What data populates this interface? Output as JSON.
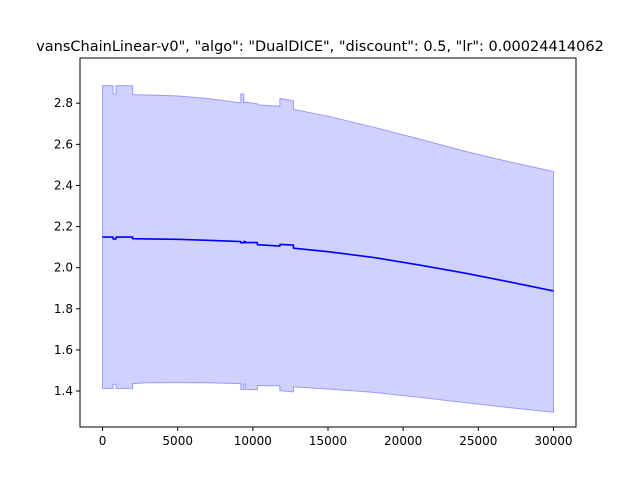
{
  "chart_data": {
    "type": "line",
    "title": "vansChainLinear-v0\", \"algo\": \"DualDICE\", \"discount\": 0.5, \"lr\": 0.00024414062",
    "xlabel": "",
    "ylabel": "",
    "xlim": [
      -1500,
      31500
    ],
    "ylim": [
      1.225,
      3.02
    ],
    "x_ticks": [
      0,
      5000,
      10000,
      15000,
      20000,
      25000,
      30000
    ],
    "x_tick_labels": [
      "0",
      "5000",
      "10000",
      "15000",
      "20000",
      "25000",
      "30000"
    ],
    "y_ticks": [
      1.4,
      1.6,
      1.8,
      2.0,
      2.2,
      2.4,
      2.6,
      2.8
    ],
    "y_tick_labels": [
      "1.4",
      "1.6",
      "1.8",
      "2.0",
      "2.2",
      "2.4",
      "2.6",
      "2.8"
    ],
    "grid": false,
    "colors": {
      "line": "#0000ff",
      "band_fill": "#0000ff",
      "band_fill_opacity": 0.18,
      "band_edge": "#9999ff"
    },
    "series": [
      {
        "x": [
          0,
          700,
          700,
          900,
          900,
          2000,
          2000,
          3000,
          5000,
          7000,
          9200,
          9200,
          9400,
          9400,
          9500,
          9500,
          10300,
          10300,
          11800,
          11800,
          12700,
          12700,
          15000,
          18000,
          21000,
          24000,
          27000,
          30000
        ],
        "mean": [
          2.149,
          2.149,
          2.14,
          2.14,
          2.149,
          2.149,
          2.141,
          2.14,
          2.138,
          2.133,
          2.127,
          2.121,
          2.121,
          2.127,
          2.127,
          2.122,
          2.122,
          2.112,
          2.105,
          2.113,
          2.11,
          2.095,
          2.078,
          2.05,
          2.014,
          1.975,
          1.932,
          1.887
        ],
        "upper": [
          2.885,
          2.885,
          2.845,
          2.845,
          2.885,
          2.885,
          2.842,
          2.84,
          2.835,
          2.823,
          2.802,
          2.845,
          2.845,
          2.802,
          2.802,
          2.805,
          2.797,
          2.792,
          2.785,
          2.823,
          2.812,
          2.77,
          2.737,
          2.684,
          2.627,
          2.568,
          2.516,
          2.468
        ],
        "lower": [
          1.413,
          1.413,
          1.433,
          1.433,
          1.413,
          1.413,
          1.436,
          1.44,
          1.441,
          1.44,
          1.436,
          1.408,
          1.408,
          1.434,
          1.434,
          1.408,
          1.406,
          1.427,
          1.425,
          1.402,
          1.396,
          1.42,
          1.41,
          1.394,
          1.37,
          1.345,
          1.32,
          1.297
        ]
      }
    ]
  }
}
